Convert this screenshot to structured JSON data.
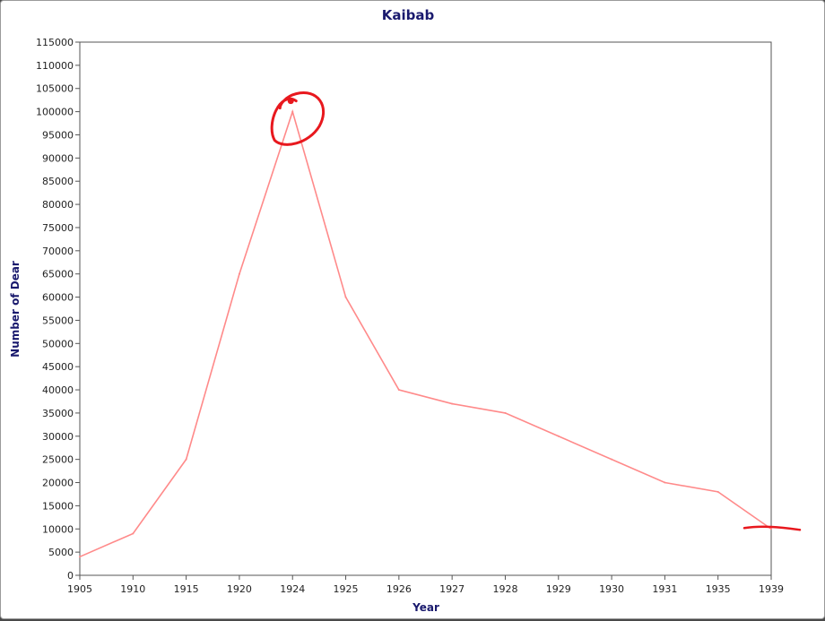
{
  "chart_data": {
    "type": "line",
    "title": "Kaibab",
    "xlabel": "Year",
    "ylabel": "Number of Dear",
    "categories": [
      "1905",
      "1910",
      "1915",
      "1920",
      "1924",
      "1925",
      "1926",
      "1927",
      "1928",
      "1929",
      "1930",
      "1931",
      "1935",
      "1939"
    ],
    "values": [
      4000,
      9000,
      25000,
      65000,
      100000,
      60000,
      40000,
      37000,
      35000,
      30000,
      25000,
      20000,
      18000,
      10000
    ],
    "ylim": [
      0,
      115000
    ],
    "ytick_step": 5000,
    "grid": false,
    "legend": "none",
    "colors": {
      "line": "#ff8a8a",
      "title": "#1a1a6e",
      "axis_label": "#1a1a6e",
      "annotation": "#e8181e"
    },
    "annotations": [
      {
        "type": "hand-drawn-circle",
        "target_category": "1924",
        "target_value": 100000
      },
      {
        "type": "hand-drawn-dash",
        "target_category": "1939",
        "target_value": 10000
      }
    ]
  }
}
